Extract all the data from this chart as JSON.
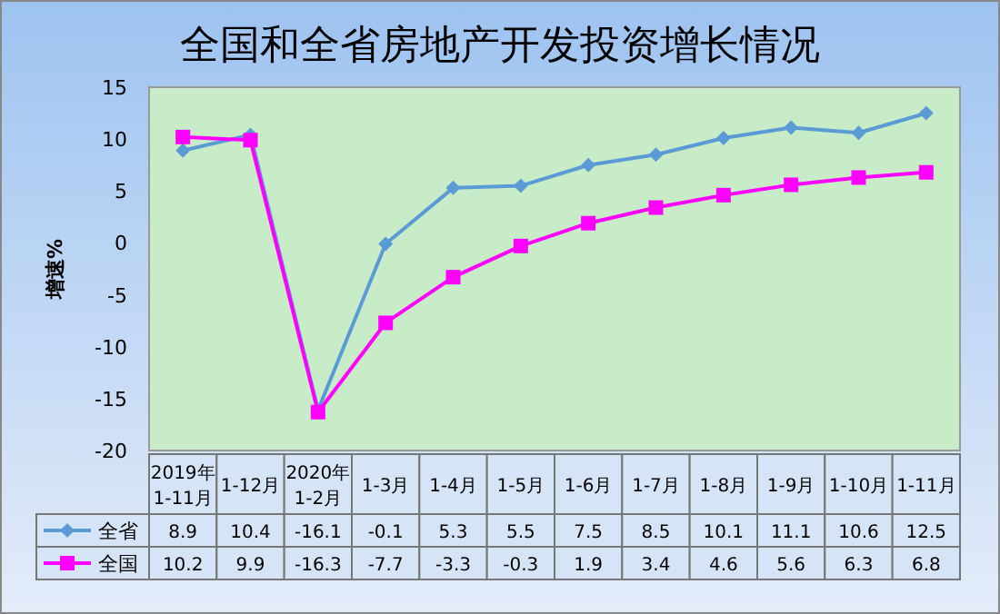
{
  "chart_data": {
    "type": "line",
    "title": "全国和全省房地产开发投资增长情况",
    "ylabel": "增速%",
    "categories": [
      "2019年\n1-11月",
      "1-12月",
      "2020年\n1-2月",
      "1-3月",
      "1-4月",
      "1-5月",
      "1-6月",
      "1-7月",
      "1-8月",
      "1-9月",
      "1-10月",
      "1-11月"
    ],
    "series": [
      {
        "name": "全省",
        "color": "#5b9bd5",
        "marker": "diamond",
        "values": [
          8.9,
          10.4,
          -16.1,
          -0.1,
          5.3,
          5.5,
          7.5,
          8.5,
          10.1,
          11.1,
          10.6,
          12.5
        ]
      },
      {
        "name": "全国",
        "color": "#ff00ff",
        "marker": "square",
        "values": [
          10.2,
          9.9,
          -16.3,
          -7.7,
          -3.3,
          -0.3,
          1.9,
          3.4,
          4.6,
          5.6,
          6.3,
          6.8
        ]
      }
    ],
    "ylim": [
      -20,
      15
    ],
    "yticks": [
      -20,
      -15,
      -10,
      -5,
      0,
      5,
      10,
      15
    ],
    "grid": false,
    "legend": "bottom",
    "data_labels": true,
    "line_style": "solid"
  }
}
